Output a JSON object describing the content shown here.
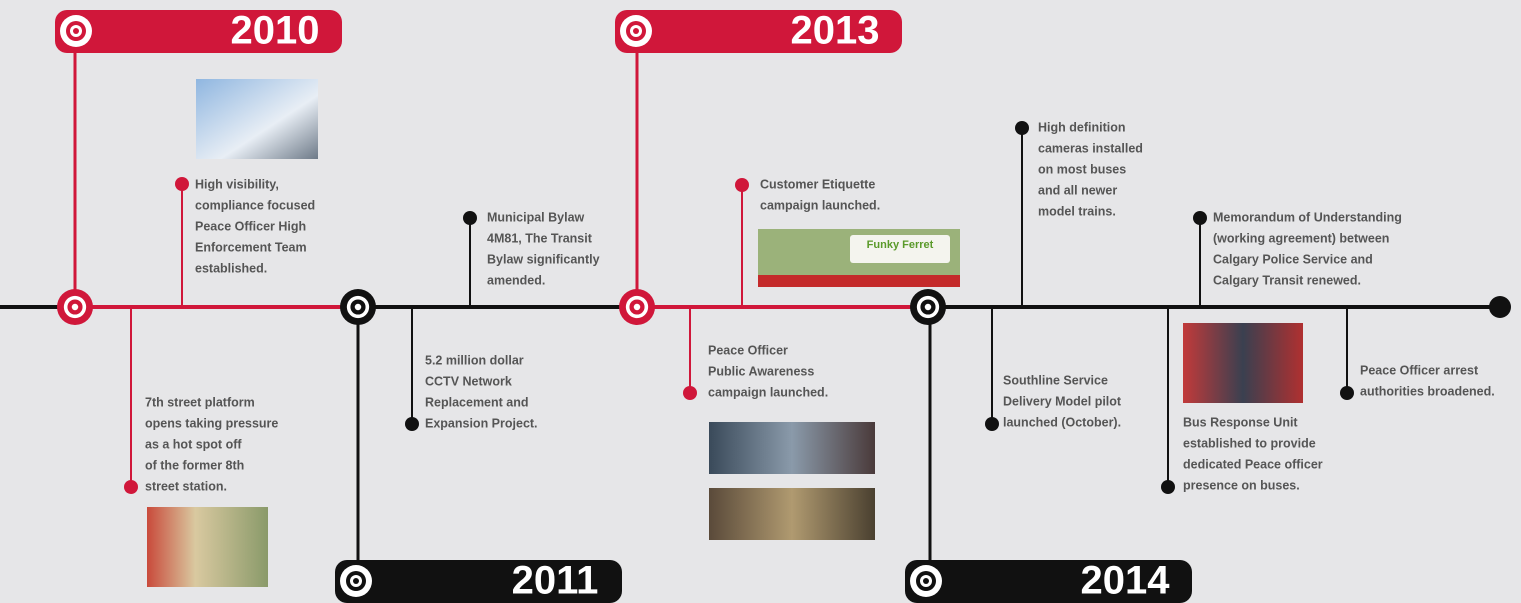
{
  "years": [
    "2010",
    "2011",
    "2013",
    "2014"
  ],
  "banner_text": "Funky Ferret",
  "events": [
    {
      "lines": [
        "High visibility,",
        "compliance focused",
        "Peace Officer High",
        "Enforcement Team",
        "established."
      ]
    },
    {
      "lines": [
        "7th street platform",
        "opens taking pressure",
        "as a hot spot off",
        "of the former 8th",
        "street station."
      ]
    },
    {
      "lines": [
        "Municipal Bylaw",
        "4M81, The Transit",
        "Bylaw significantly",
        "amended."
      ]
    },
    {
      "lines": [
        "5.2 million dollar",
        "CCTV Network",
        "Replacement and",
        "Expansion Project."
      ]
    },
    {
      "lines": [
        "Customer Etiquette",
        "campaign launched."
      ]
    },
    {
      "lines": [
        "Peace Officer",
        "Public Awareness",
        "campaign launched."
      ]
    },
    {
      "lines": [
        "High definition",
        "cameras installed",
        "on most buses",
        "and all newer",
        "model trains."
      ]
    },
    {
      "lines": [
        "Southline Service",
        "Delivery Model pilot",
        "launched (October)."
      ]
    },
    {
      "lines": [
        "Memorandum of Understanding",
        "(working agreement) between",
        "Calgary Police Service and",
        "Calgary Transit renewed."
      ]
    },
    {
      "lines": [
        "Bus Response Unit",
        "established to provide",
        "dedicated Peace officer",
        "presence on buses."
      ]
    },
    {
      "lines": [
        "Peace Officer arrest",
        "authorities broadened."
      ]
    }
  ]
}
